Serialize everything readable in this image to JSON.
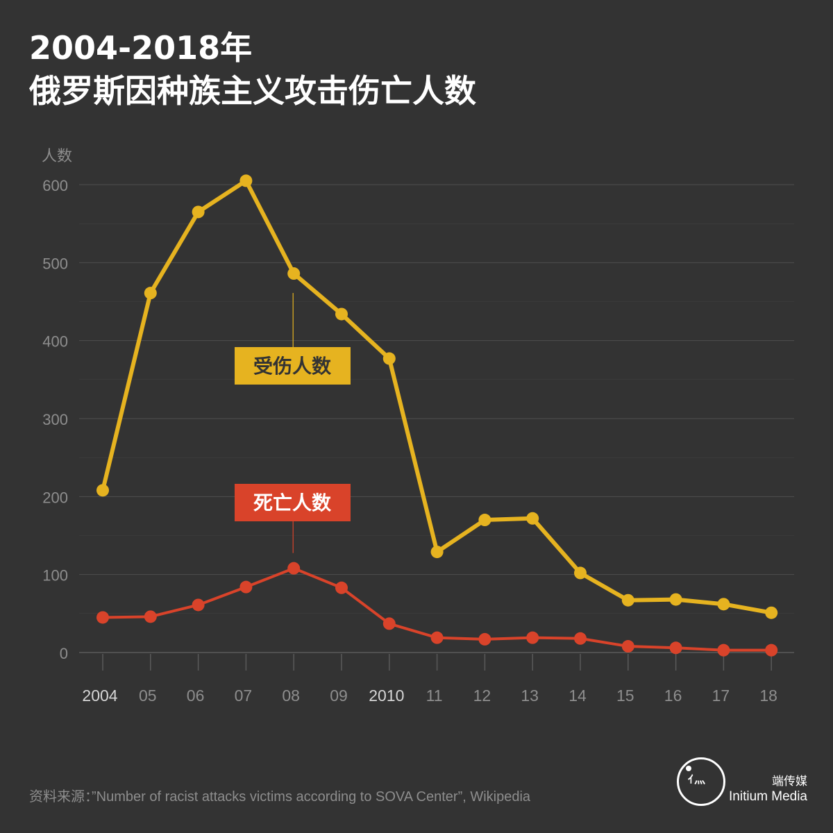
{
  "title_lines": [
    "2004-2018年",
    "俄罗斯因种族主义攻击伤亡人数"
  ],
  "source": "资料来源：”Number of racist attacks victims according to SOVA Center”, Wikipedia",
  "logo": {
    "cn": "端传媒",
    "en": "Initium Media",
    "mark": "ｲ灬",
    "icon": "initium-logo-icon"
  },
  "colors": {
    "background": "#333333",
    "injured": "#e6b320",
    "deaths": "#d9432a",
    "grid": "#4f4f4f",
    "tick_text": "#8e8e8e",
    "tick_text_bright": "#d6d6d6"
  },
  "chart_data": {
    "type": "line",
    "ylabel": "人数",
    "ylim": [
      0,
      600
    ],
    "yticks": [
      0,
      100,
      200,
      300,
      400,
      500,
      600
    ],
    "grid": true,
    "x_labels": [
      "2004",
      "05",
      "06",
      "07",
      "08",
      "09",
      "2010",
      "11",
      "12",
      "13",
      "14",
      "15",
      "16",
      "17",
      "18"
    ],
    "highlight_labels": [
      "2004",
      "2010"
    ],
    "series": [
      {
        "name": "受伤人数",
        "values": [
          208,
          461,
          565,
          605,
          486,
          434,
          377,
          129,
          170,
          172,
          102,
          67,
          68,
          62,
          51
        ]
      },
      {
        "name": "死亡人数",
        "values": [
          45,
          46,
          61,
          84,
          108,
          83,
          37,
          19,
          17,
          19,
          18,
          8,
          6,
          3,
          3
        ]
      }
    ],
    "annotations": [
      {
        "text": "受伤人数",
        "series": 0,
        "year_index": 4
      },
      {
        "text": "死亡人数",
        "series": 1,
        "year_index": 4
      }
    ]
  }
}
